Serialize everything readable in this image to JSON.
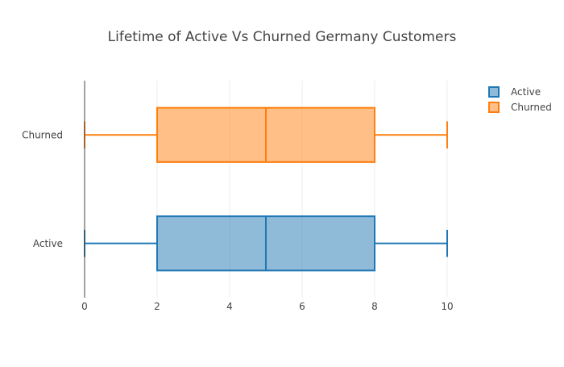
{
  "chart_data": {
    "type": "box",
    "title": "Lifetime of Active Vs Churned Germany Customers",
    "orientation": "horizontal",
    "categories": [
      "Active",
      "Churned"
    ],
    "xlabel": "",
    "ylabel": "",
    "xlim": [
      0,
      10.6
    ],
    "xticks": [
      0,
      2,
      4,
      6,
      8,
      10
    ],
    "grid": true,
    "legend_position": "top-right",
    "series": [
      {
        "name": "Active",
        "category": "Active",
        "color": "#1f77b4",
        "fill": "rgba(31,119,180,0.5)",
        "min": 0,
        "q1": 2,
        "median": 5,
        "q3": 8,
        "max": 10
      },
      {
        "name": "Churned",
        "category": "Churned",
        "color": "#ff7f0e",
        "fill": "rgba(255,127,14,0.5)",
        "min": 0,
        "q1": 2,
        "median": 5,
        "q3": 8,
        "max": 10
      }
    ]
  }
}
